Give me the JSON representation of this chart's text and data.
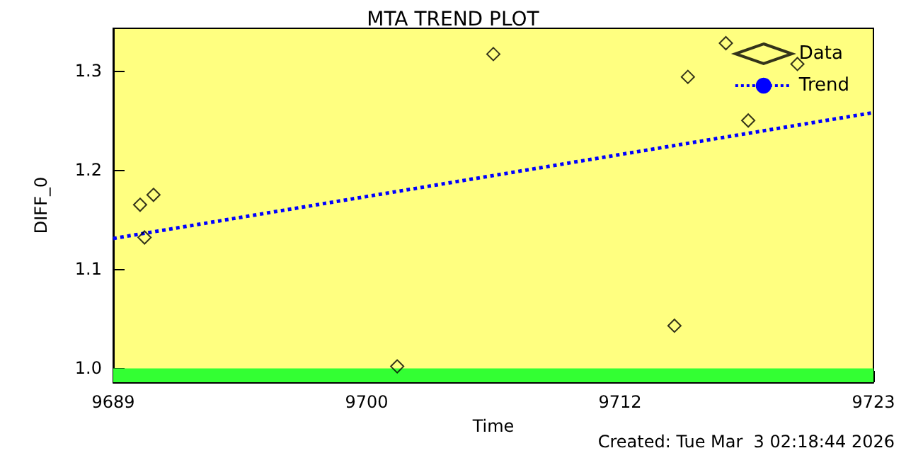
{
  "chart_data": {
    "type": "scatter",
    "title": "MTA TREND PLOT",
    "xlabel": "Time",
    "ylabel": "DIFF_0",
    "annotations": [
      "Created: Tue Mar  3 02:18:44 2026"
    ],
    "series": [
      {
        "name": "Data",
        "color": "#000000",
        "marker": "diamond",
        "x": [
          9690.2,
          9690.4,
          9690.8,
          9701.7,
          9706.0,
          9714.1,
          9714.7,
          9716.4,
          9717.4,
          9719.6
        ],
        "values": [
          1.165,
          1.132,
          1.175,
          1.002,
          1.317,
          1.043,
          1.294,
          1.328,
          1.25,
          1.307
        ]
      },
      {
        "name": "Trend",
        "type": "line",
        "color": "#0000ff",
        "line_style": "dotted",
        "marker": "none",
        "x": [
          9689,
          9723
        ],
        "values": [
          1.131,
          1.258
        ]
      }
    ],
    "xlim": [
      9689,
      9723
    ],
    "xticks": [
      9689,
      {
        "value": 9700.333,
        "label": "9700"
      },
      {
        "value": 9711.667,
        "label": "9712"
      },
      9723
    ],
    "ylim": [
      0.986,
      1.343
    ],
    "yticks": [
      {
        "value": 1.0,
        "label": "1.0"
      },
      {
        "value": 1.1,
        "label": "1.1"
      },
      {
        "value": 1.2,
        "label": "1.2"
      },
      {
        "value": 1.3,
        "label": "1.3"
      }
    ],
    "bands": [
      {
        "axis": "y",
        "from": 0.986,
        "to": 1.0,
        "color": "#33ff33"
      }
    ],
    "legend": "top right",
    "grid": false
  }
}
